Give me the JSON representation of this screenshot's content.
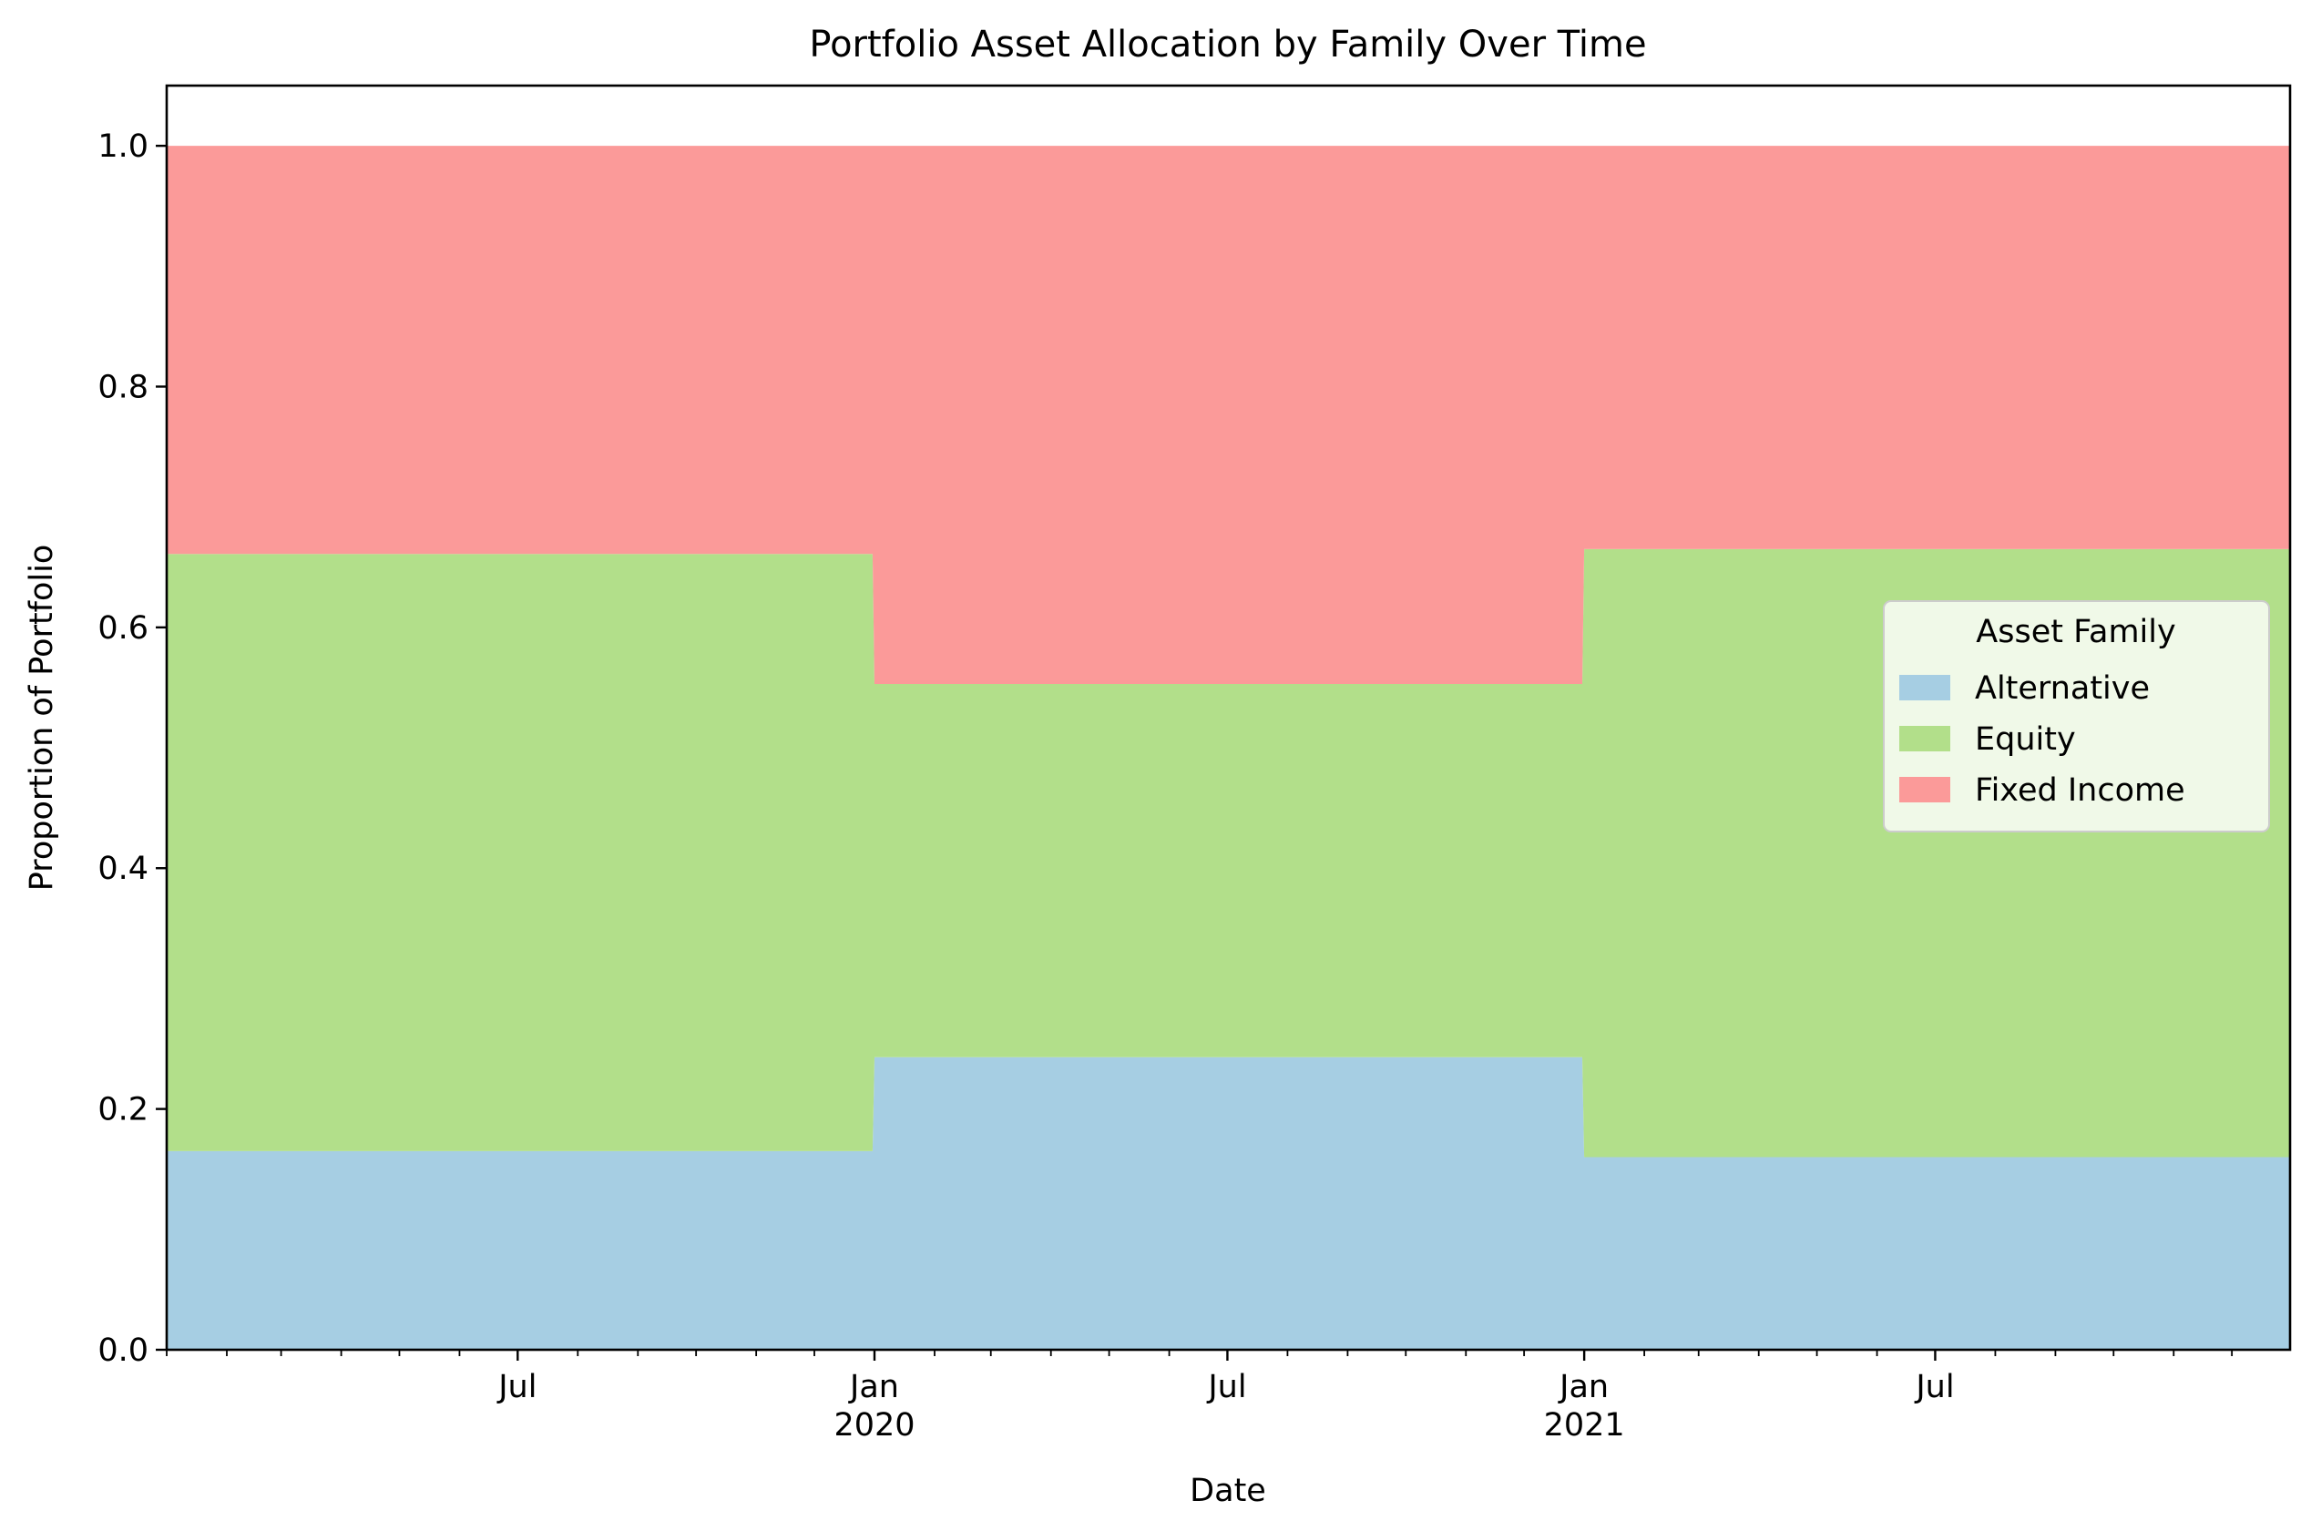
{
  "chart_data": {
    "type": "area",
    "stacked": true,
    "title": "Portfolio Asset Allocation by Family Over Time",
    "xlabel": "Date",
    "ylabel": "Proportion of Portfolio",
    "xlim": [
      "2019-01-01",
      "2021-12-31"
    ],
    "ylim": [
      0,
      1.05
    ],
    "yticks": [
      0.0,
      0.2,
      0.4,
      0.6,
      0.8,
      1.0
    ],
    "ytick_labels": [
      "0.0",
      "0.2",
      "0.4",
      "0.6",
      "0.8",
      "1.0"
    ],
    "xticks": [
      {
        "date": "2019-07-01",
        "label": "Jul",
        "year": ""
      },
      {
        "date": "2020-01-01",
        "label": "Jan",
        "year": "2020"
      },
      {
        "date": "2020-07-01",
        "label": "Jul",
        "year": ""
      },
      {
        "date": "2021-01-01",
        "label": "Jan",
        "year": "2021"
      },
      {
        "date": "2021-07-01",
        "label": "Jul",
        "year": ""
      }
    ],
    "x": [
      "2019-01-01",
      "2019-12-31",
      "2020-01-01",
      "2020-12-31",
      "2021-01-01",
      "2021-12-31"
    ],
    "series": [
      {
        "name": "Alternative",
        "color": "#a6cee3",
        "values": [
          0.165,
          0.165,
          0.243,
          0.243,
          0.16,
          0.16
        ]
      },
      {
        "name": "Equity",
        "color": "#b2df8a",
        "values": [
          0.496,
          0.496,
          0.31,
          0.31,
          0.505,
          0.505
        ]
      },
      {
        "name": "Fixed Income",
        "color": "#fb9a99",
        "values": [
          0.339,
          0.339,
          0.447,
          0.447,
          0.335,
          0.335
        ]
      }
    ],
    "legend": {
      "title": "Asset Family",
      "position": "center-right"
    },
    "grid": false
  }
}
